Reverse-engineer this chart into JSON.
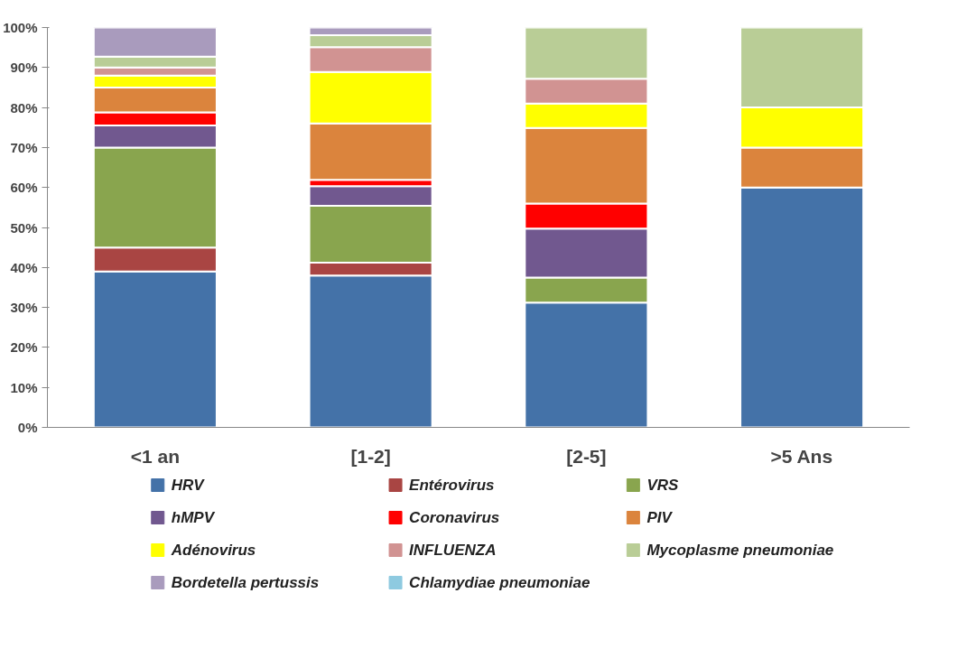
{
  "chart_data": {
    "type": "bar",
    "stacked": true,
    "categories": [
      "<1 an",
      "[1-2]",
      "[2-5]",
      ">5 Ans"
    ],
    "series": [
      {
        "name": "HRV",
        "color": "#4472a8",
        "values": [
          39,
          38,
          31.2,
          60
        ]
      },
      {
        "name": "Entérovirus",
        "color": "#a94543",
        "values": [
          6,
          3.2,
          0,
          0
        ]
      },
      {
        "name": "VRS",
        "color": "#89a54e",
        "values": [
          25,
          14.2,
          6.3,
          0
        ]
      },
      {
        "name": "hMPV",
        "color": "#71588f",
        "values": [
          5.5,
          4.9,
          12.2,
          0
        ]
      },
      {
        "name": "Coronavirus",
        "color": "#ff0000",
        "values": [
          3.3,
          1.6,
          6.3,
          0
        ]
      },
      {
        "name": "PIV",
        "color": "#db843d",
        "values": [
          6.2,
          14.1,
          18.9,
          10
        ]
      },
      {
        "name": "Adénovirus",
        "color": "#ffff00",
        "values": [
          3,
          12.9,
          6.1,
          10
        ]
      },
      {
        "name": "INFLUENZA",
        "color": "#d19392",
        "values": [
          2,
          6.2,
          6.2,
          0
        ]
      },
      {
        "name": "Mycoplasme pneumoniae",
        "color": "#b9cd96",
        "values": [
          2.7,
          3,
          12.8,
          20
        ]
      },
      {
        "name": "Bordetella pertussis",
        "color": "#a99bbd",
        "values": [
          7.3,
          1.9,
          0,
          0
        ]
      },
      {
        "name": "Chlamydiae pneumoniae",
        "color": "#8ecae0",
        "values": [
          0,
          0,
          0,
          0
        ]
      }
    ],
    "ylim": [
      0,
      100
    ],
    "yticks": [
      {
        "value": 0,
        "label": "0%"
      },
      {
        "value": 10,
        "label": "10%"
      },
      {
        "value": 20,
        "label": "20%"
      },
      {
        "value": 30,
        "label": "30%"
      },
      {
        "value": 40,
        "label": "40%"
      },
      {
        "value": 50,
        "label": "50%"
      },
      {
        "value": 60,
        "label": "60%"
      },
      {
        "value": 70,
        "label": "70%"
      },
      {
        "value": 80,
        "label": "80%"
      },
      {
        "value": 90,
        "label": "90%"
      },
      {
        "value": 100,
        "label": "100%"
      }
    ],
    "grid": false,
    "legend": "bottom"
  }
}
